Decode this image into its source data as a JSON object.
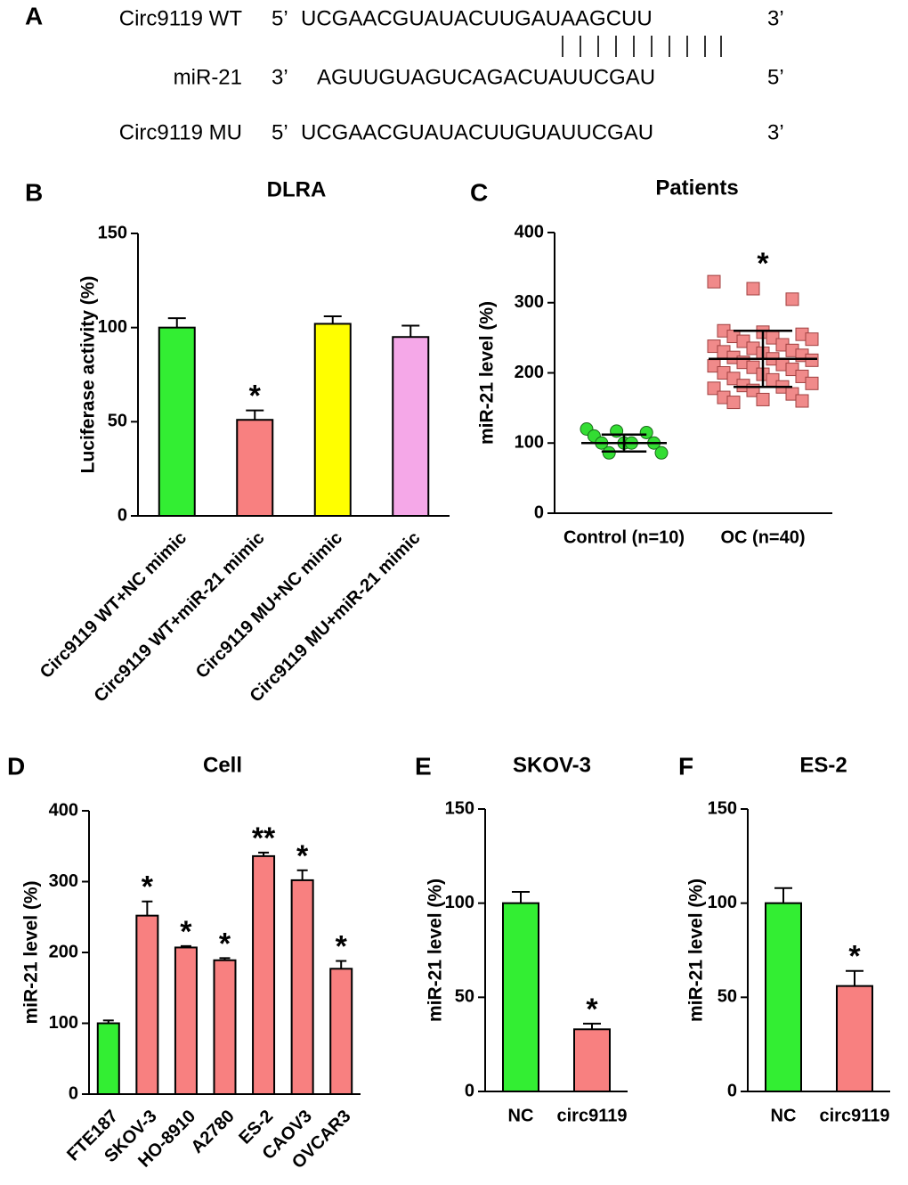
{
  "alignment": {
    "panel": "A",
    "rows": [
      {
        "name": "Circ9119 WT",
        "left": "5’",
        "seq": "UCGAACGUAUACUUGAUAAGCUU",
        "right": "3’"
      },
      {
        "name": "miR-21",
        "left": "3’",
        "seq": "AGUUGUAGUCAGACUAUUCGAU",
        "right": "5’"
      },
      {
        "name": "Circ9119 MU",
        "left": "5’",
        "seq": "UCGAACGUAUACUUGUAUUCGAU",
        "right": "3’"
      }
    ]
  },
  "chart_data": [
    {
      "type": "bar",
      "panel": "B",
      "title": "DLRA",
      "ylabel": "Luciferase activity (%)",
      "categories": [
        "Circ9119 WT+NC mimic",
        "Circ9119 WT+miR-21 mimic",
        "Circ9119 MU+NC mimic",
        "Circ9119 MU+miR-21 mimic"
      ],
      "values": [
        100,
        51,
        102,
        95
      ],
      "errors": [
        5,
        5,
        4,
        6
      ],
      "colors": [
        "#33ee33",
        "#f88080",
        "#ffff00",
        "#f5a8e8"
      ],
      "annotations": [
        null,
        "*",
        null,
        null
      ],
      "ylim": [
        0,
        150
      ],
      "yticks": [
        0,
        50,
        100,
        150
      ]
    },
    {
      "type": "scatter",
      "panel": "C",
      "title": "Patients",
      "ylabel": "miR-21 level (%)",
      "categories": [
        "Control (n=10)",
        "OC (n=40)"
      ],
      "groups": [
        {
          "color": "#33dd33",
          "marker": "circle",
          "values": [
            120,
            117,
            115,
            110,
            100,
            100,
            100,
            100,
            86,
            86
          ],
          "mean": 100,
          "sd": 12
        },
        {
          "color": "#f08a8a",
          "marker": "square",
          "values": [
            330,
            320,
            305,
            260,
            258,
            255,
            252,
            250,
            248,
            245,
            240,
            238,
            235,
            232,
            230,
            228,
            225,
            222,
            220,
            218,
            215,
            212,
            210,
            208,
            205,
            200,
            198,
            195,
            192,
            190,
            185,
            182,
            180,
            178,
            175,
            170,
            165,
            162,
            160,
            158
          ],
          "mean": 220,
          "sd": 40
        }
      ],
      "annotations": [
        null,
        "*"
      ],
      "ylim": [
        0,
        400
      ],
      "yticks": [
        0,
        100,
        200,
        300,
        400
      ]
    },
    {
      "type": "bar",
      "panel": "D",
      "title": "Cell",
      "ylabel": "miR-21 level (%)",
      "categories": [
        "FTE187",
        "SKOV-3",
        "HO-8910",
        "A2780",
        "ES-2",
        "CAOV3",
        "OVCAR3"
      ],
      "values": [
        100,
        252,
        207,
        189,
        336,
        302,
        177
      ],
      "errors": [
        4,
        20,
        2,
        3,
        5,
        14,
        11
      ],
      "colors": [
        "#33ee33",
        "#f88080",
        "#f88080",
        "#f88080",
        "#f88080",
        "#f88080",
        "#f88080"
      ],
      "annotations": [
        null,
        "*",
        "*",
        "*",
        "**",
        "*",
        "*"
      ],
      "ylim": [
        0,
        400
      ],
      "yticks": [
        0,
        100,
        200,
        300,
        400
      ]
    },
    {
      "type": "bar",
      "panel": "E",
      "title": "SKOV-3",
      "ylabel": "miR-21 level (%)",
      "categories": [
        "NC",
        "circ9119"
      ],
      "values": [
        100,
        33
      ],
      "errors": [
        6,
        3
      ],
      "colors": [
        "#33ee33",
        "#f88080"
      ],
      "annotations": [
        null,
        "*"
      ],
      "ylim": [
        0,
        150
      ],
      "yticks": [
        0,
        50,
        100,
        150
      ]
    },
    {
      "type": "bar",
      "panel": "F",
      "title": "ES-2",
      "ylabel": "miR-21 level (%)",
      "categories": [
        "NC",
        "circ9119"
      ],
      "values": [
        100,
        56
      ],
      "errors": [
        8,
        8
      ],
      "colors": [
        "#33ee33",
        "#f88080"
      ],
      "annotations": [
        null,
        "*"
      ],
      "ylim": [
        0,
        150
      ],
      "yticks": [
        0,
        50,
        100,
        150
      ]
    }
  ]
}
